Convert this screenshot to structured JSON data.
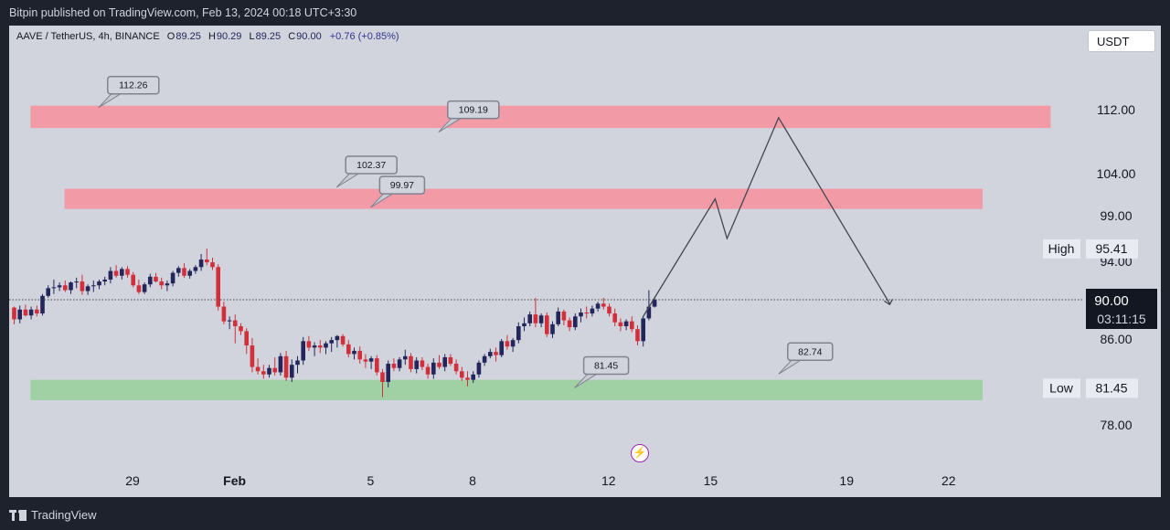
{
  "header": {
    "attribution": "Bitpin published on TradingView.com, Feb 13, 2024 00:18 UTC+3:30"
  },
  "legend": {
    "symbol": "AAVE / TetherUS, 4h, BINANCE",
    "o_label": "O",
    "o": "89.25",
    "h_label": "H",
    "h": "90.29",
    "l_label": "L",
    "l": "89.25",
    "c_label": "C",
    "c": "90.00",
    "change": "+0.76 (+0.85%)"
  },
  "currency": "USDT",
  "footer": {
    "brand": "TradingView"
  },
  "colors": {
    "background": "#d1d4dc",
    "frame": "#1e222d",
    "resistance_zone": "#f29aa6",
    "support_zone": "#9fd1a4",
    "up_candle": "#22265a",
    "down_candle": "#d32f3a",
    "projection": "#434651",
    "price_label": "#131722",
    "event_icon": "#9c27b0"
  },
  "icons": {
    "event": "lightning-bolt-icon",
    "brand": "tradingview-logo-icon"
  },
  "chart_data": {
    "type": "candlestick",
    "symbol": "AAVE / TetherUS",
    "interval": "4h",
    "y_axis": {
      "ticks": [
        {
          "value": 112.0,
          "label": "112.00"
        },
        {
          "value": 104.0,
          "label": "104.00"
        },
        {
          "value": 99.0,
          "label": "99.00"
        },
        {
          "value": 94.0,
          "label": "94.00"
        },
        {
          "value": 86.0,
          "label": "86.00"
        },
        {
          "value": 78.0,
          "label": "78.00"
        }
      ]
    },
    "x_axis": {
      "ticks": [
        {
          "date": "2024-01-29",
          "label": "29"
        },
        {
          "date": "2024-02-01",
          "label": "Feb"
        },
        {
          "date": "2024-02-05",
          "label": "5"
        },
        {
          "date": "2024-02-08",
          "label": "8"
        },
        {
          "date": "2024-02-12",
          "label": "12"
        },
        {
          "date": "2024-02-15",
          "label": "15"
        },
        {
          "date": "2024-02-19",
          "label": "19"
        },
        {
          "date": "2024-02-22",
          "label": "22"
        }
      ]
    },
    "current_price": {
      "value": 90.0,
      "label": "90.00",
      "countdown": "03:11:15"
    },
    "high_marker": {
      "name": "High",
      "value": 95.41,
      "label": "95.41"
    },
    "low_marker": {
      "name": "Low",
      "value": 81.45,
      "label": "81.45"
    },
    "zones": [
      {
        "kind": "resistance",
        "top": 112.5,
        "bottom": 109.7,
        "from": "2024-01-26",
        "to": "2024-02-25"
      },
      {
        "kind": "resistance",
        "top": 102.2,
        "bottom": 99.8,
        "from": "2024-01-27",
        "to": "2024-02-23"
      },
      {
        "kind": "support",
        "top": 82.2,
        "bottom": 80.3,
        "from": "2024-01-26",
        "to": "2024-02-23"
      }
    ],
    "callouts": [
      {
        "label": "112.26",
        "date": "2024-01-28",
        "value": 112.26
      },
      {
        "label": "109.19",
        "date": "2024-02-07",
        "value": 109.19
      },
      {
        "label": "102.37",
        "date": "2024-02-04",
        "value": 102.37
      },
      {
        "label": "99.97",
        "date": "2024-02-05",
        "value": 99.97
      },
      {
        "label": "81.45",
        "date": "2024-02-11",
        "value": 81.45
      },
      {
        "label": "82.74",
        "date": "2024-02-17",
        "value": 82.74
      }
    ],
    "projection": [
      {
        "date": "2024-02-13",
        "value": 88.2
      },
      {
        "date": "2024-02-15",
        "value": 101.0
      },
      {
        "date": "2024-02-15",
        "value": 96.5
      },
      {
        "date": "2024-02-17",
        "value": 111.0
      },
      {
        "date": "2024-02-20",
        "value": 89.6
      }
    ],
    "candles": [
      [
        89.2,
        89.3,
        87.5,
        88.0
      ],
      [
        88.0,
        89.4,
        87.6,
        89.0
      ],
      [
        89.0,
        89.5,
        88.3,
        88.4
      ],
      [
        88.4,
        89.3,
        88.0,
        89.0
      ],
      [
        89.0,
        89.4,
        88.3,
        88.6
      ],
      [
        88.6,
        90.6,
        88.4,
        90.4
      ],
      [
        90.4,
        91.5,
        90.2,
        91.2
      ],
      [
        91.2,
        92.1,
        90.6,
        91.3
      ],
      [
        91.3,
        91.8,
        90.9,
        91.5
      ],
      [
        91.5,
        92.0,
        90.8,
        91.0
      ],
      [
        91.0,
        91.9,
        90.6,
        91.8
      ],
      [
        91.8,
        92.3,
        91.2,
        91.9
      ],
      [
        91.9,
        92.6,
        90.5,
        90.9
      ],
      [
        90.9,
        91.6,
        90.5,
        91.4
      ],
      [
        91.4,
        92.0,
        90.8,
        91.5
      ],
      [
        91.5,
        92.1,
        91.1,
        91.9
      ],
      [
        91.9,
        92.4,
        91.5,
        92.1
      ],
      [
        92.1,
        93.4,
        91.7,
        93.0
      ],
      [
        93.0,
        93.6,
        92.3,
        92.5
      ],
      [
        92.5,
        93.4,
        92.1,
        93.2
      ],
      [
        93.2,
        93.5,
        92.3,
        92.6
      ],
      [
        92.6,
        92.9,
        91.3,
        91.5
      ],
      [
        91.5,
        92.1,
        90.6,
        90.8
      ],
      [
        90.8,
        91.8,
        90.6,
        91.6
      ],
      [
        91.6,
        92.7,
        91.3,
        92.4
      ],
      [
        92.4,
        92.8,
        91.8,
        91.9
      ],
      [
        91.9,
        92.3,
        91.1,
        91.5
      ],
      [
        91.5,
        92.0,
        90.9,
        91.7
      ],
      [
        91.7,
        93.0,
        91.4,
        92.8
      ],
      [
        92.8,
        93.5,
        92.4,
        93.3
      ],
      [
        93.3,
        93.8,
        92.3,
        92.5
      ],
      [
        92.5,
        93.2,
        92.2,
        93.0
      ],
      [
        93.0,
        93.6,
        92.7,
        93.4
      ],
      [
        93.4,
        94.8,
        93.0,
        94.2
      ],
      [
        94.2,
        95.4,
        93.6,
        93.9
      ],
      [
        93.9,
        94.4,
        93.1,
        93.4
      ],
      [
        93.4,
        93.7,
        88.9,
        89.3
      ],
      [
        89.3,
        89.8,
        87.5,
        87.8
      ],
      [
        87.8,
        88.3,
        87.0,
        87.9
      ],
      [
        87.9,
        88.5,
        85.6,
        87.3
      ],
      [
        87.3,
        87.6,
        86.4,
        86.8
      ],
      [
        86.8,
        87.1,
        84.6,
        85.4
      ],
      [
        85.4,
        86.1,
        82.9,
        83.4
      ],
      [
        83.4,
        84.2,
        82.7,
        83.0
      ],
      [
        83.0,
        83.6,
        82.3,
        82.7
      ],
      [
        82.7,
        83.6,
        82.4,
        83.3
      ],
      [
        83.3,
        84.3,
        82.6,
        82.9
      ],
      [
        82.9,
        84.7,
        82.6,
        84.4
      ],
      [
        84.4,
        84.9,
        82.1,
        82.4
      ],
      [
        82.4,
        84.1,
        82.0,
        83.6
      ],
      [
        83.6,
        84.4,
        82.8,
        84.0
      ],
      [
        84.0,
        86.2,
        83.6,
        85.8
      ],
      [
        85.8,
        86.3,
        84.9,
        85.2
      ],
      [
        85.2,
        85.7,
        84.4,
        85.4
      ],
      [
        85.4,
        85.9,
        84.7,
        85.2
      ],
      [
        85.2,
        85.8,
        84.6,
        85.6
      ],
      [
        85.6,
        86.2,
        84.8,
        85.9
      ],
      [
        85.9,
        86.4,
        85.2,
        86.3
      ],
      [
        86.3,
        86.5,
        85.3,
        85.5
      ],
      [
        85.5,
        85.9,
        84.3,
        84.6
      ],
      [
        84.6,
        85.2,
        84.1,
        84.9
      ],
      [
        84.9,
        85.3,
        83.7,
        84.1
      ],
      [
        84.1,
        84.6,
        83.3,
        83.9
      ],
      [
        83.9,
        84.4,
        83.2,
        84.2
      ],
      [
        84.2,
        84.5,
        82.6,
        82.9
      ],
      [
        82.9,
        83.2,
        80.6,
        82.0
      ],
      [
        82.0,
        84.0,
        81.5,
        83.7
      ],
      [
        83.7,
        84.2,
        83.0,
        83.3
      ],
      [
        83.3,
        84.3,
        83.0,
        84.1
      ],
      [
        84.1,
        85.0,
        83.6,
        84.4
      ],
      [
        84.4,
        84.7,
        82.9,
        83.2
      ],
      [
        83.2,
        84.3,
        82.8,
        84.0
      ],
      [
        84.0,
        84.3,
        83.1,
        83.4
      ],
      [
        83.4,
        83.7,
        82.3,
        82.7
      ],
      [
        82.7,
        84.2,
        82.3,
        83.8
      ],
      [
        83.8,
        84.5,
        83.2,
        83.4
      ],
      [
        83.4,
        84.6,
        83.0,
        84.3
      ],
      [
        84.3,
        84.6,
        83.5,
        83.7
      ],
      [
        83.7,
        84.1,
        82.7,
        83.0
      ],
      [
        83.0,
        83.4,
        82.1,
        82.4
      ],
      [
        82.4,
        83.0,
        81.6,
        82.2
      ],
      [
        82.2,
        83.0,
        81.9,
        82.7
      ],
      [
        82.7,
        84.0,
        82.4,
        83.8
      ],
      [
        83.8,
        84.6,
        83.5,
        84.4
      ],
      [
        84.4,
        85.1,
        84.2,
        84.8
      ],
      [
        84.8,
        85.2,
        83.9,
        84.5
      ],
      [
        84.5,
        86.0,
        84.3,
        85.8
      ],
      [
        85.8,
        86.4,
        85.0,
        85.3
      ],
      [
        85.3,
        86.1,
        84.8,
        85.9
      ],
      [
        85.9,
        87.7,
        85.6,
        87.3
      ],
      [
        87.3,
        88.2,
        86.8,
        87.6
      ],
      [
        87.6,
        88.8,
        87.3,
        88.5
      ],
      [
        88.5,
        90.2,
        87.2,
        87.6
      ],
      [
        87.6,
        88.6,
        87.2,
        88.4
      ],
      [
        88.4,
        88.7,
        86.2,
        86.5
      ],
      [
        86.5,
        87.8,
        86.1,
        87.5
      ],
      [
        87.5,
        89.2,
        87.3,
        88.8
      ],
      [
        88.8,
        89.0,
        87.4,
        87.9
      ],
      [
        87.9,
        88.2,
        86.8,
        87.2
      ],
      [
        87.2,
        88.6,
        86.9,
        88.3
      ],
      [
        88.3,
        89.1,
        87.7,
        88.7
      ],
      [
        88.7,
        89.3,
        88.1,
        88.6
      ],
      [
        88.6,
        89.4,
        88.3,
        89.1
      ],
      [
        89.1,
        89.8,
        88.8,
        89.6
      ],
      [
        89.6,
        90.2,
        89.0,
        89.3
      ],
      [
        89.3,
        89.6,
        88.3,
        88.6
      ],
      [
        88.6,
        89.1,
        87.3,
        87.7
      ],
      [
        87.7,
        88.1,
        86.8,
        87.3
      ],
      [
        87.3,
        88.0,
        86.9,
        87.8
      ],
      [
        87.8,
        88.3,
        86.7,
        87.0
      ],
      [
        87.0,
        87.4,
        85.4,
        85.8
      ],
      [
        85.8,
        88.3,
        85.3,
        88.1
      ],
      [
        88.1,
        91.0,
        87.9,
        89.3
      ],
      [
        89.3,
        90.3,
        89.2,
        90.0
      ]
    ]
  }
}
